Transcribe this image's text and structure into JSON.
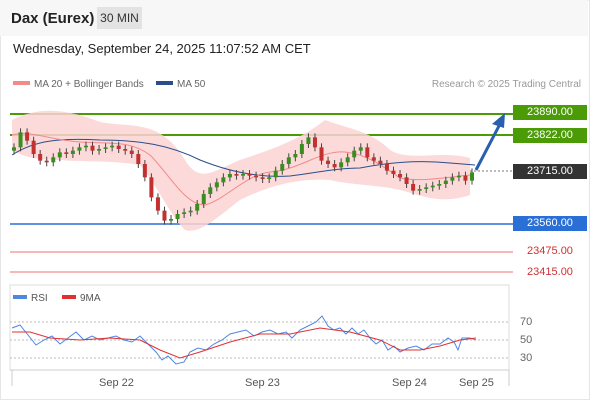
{
  "header": {
    "title": "Dax (Eurex)",
    "timeframe": "30 MIN"
  },
  "datetime": "Wednesday, September 24, 2025 11:07:52 AM CET",
  "legend": {
    "ma20": "MA 20 + Bollinger Bands",
    "ma50": "MA 50",
    "credit": "Research © 2025 Trading Central"
  },
  "levels": [
    {
      "value": "23890.00",
      "kind": "resistance",
      "color": "#4a9b05"
    },
    {
      "value": "23822.00",
      "kind": "resistance",
      "color": "#4a9b05"
    },
    {
      "value": "23715.00",
      "kind": "current",
      "color": "#333333"
    },
    {
      "value": "23560.00",
      "kind": "pivot",
      "color": "#2a6fd6"
    },
    {
      "value": "23475.00",
      "kind": "support",
      "color": "#d03030"
    },
    {
      "value": "23415.00",
      "kind": "support",
      "color": "#d03030"
    }
  ],
  "rsi": {
    "legend_rsi": "RSI",
    "legend_ma": "9MA",
    "ticks": [
      "70",
      "50",
      "30"
    ]
  },
  "xaxis": {
    "labels": [
      "Sep 22",
      "Sep 23",
      "Sep 24",
      "Sep 25"
    ]
  },
  "colors": {
    "up": "#3a8d1f",
    "down": "#c23030",
    "bollinger": "#fbd3d3",
    "ma50": "#2a4e8c",
    "ma20": "#f28a8a",
    "rsi": "#4f86e0",
    "rsi_ma": "#e03030"
  },
  "chart_data": {
    "type": "candlestick",
    "title": "Dax (Eurex)",
    "interval": "30 MIN",
    "y_levels": [
      23890,
      23822,
      23715,
      23560,
      23475,
      23415
    ],
    "closes": [
      23790,
      23835,
      23810,
      23770,
      23750,
      23745,
      23760,
      23775,
      23770,
      23780,
      23790,
      23795,
      23780,
      23785,
      23790,
      23795,
      23785,
      23780,
      23770,
      23740,
      23700,
      23640,
      23600,
      23570,
      23575,
      23590,
      23595,
      23600,
      23620,
      23650,
      23670,
      23685,
      23700,
      23710,
      23705,
      23710,
      23705,
      23700,
      23695,
      23700,
      23720,
      23740,
      23760,
      23770,
      23800,
      23820,
      23790,
      23750,
      23740,
      23730,
      23745,
      23760,
      23780,
      23790,
      23760,
      23750,
      23740,
      23720,
      23710,
      23700,
      23680,
      23660,
      23665,
      23670,
      23675,
      23680,
      23690,
      23700,
      23705,
      23690,
      23715
    ],
    "rsi_ticks": [
      70,
      50,
      30
    ],
    "xlabels": [
      "Sep 22",
      "Sep 23",
      "Sep 24",
      "Sep 25"
    ]
  }
}
